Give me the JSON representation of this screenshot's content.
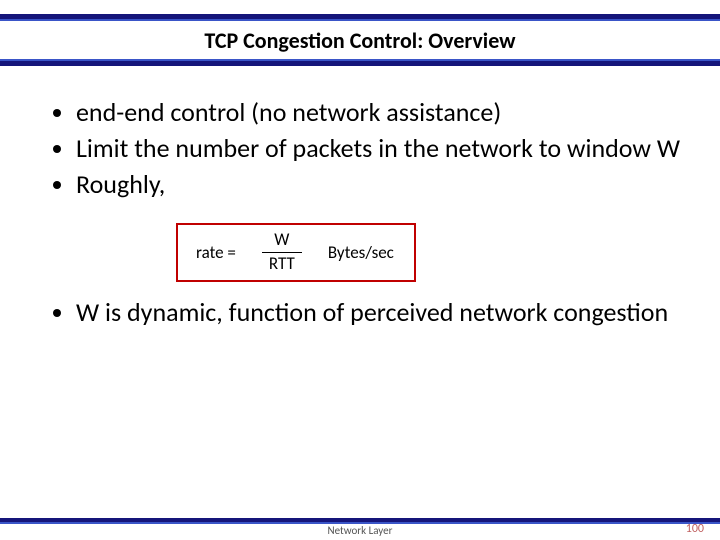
{
  "colors": {
    "band_outer": "#15157a",
    "band_inner": "#3a55c8",
    "formula_border": "#c00000",
    "page_num": "#c06060"
  },
  "title": "TCP Congestion Control: Overview",
  "bullets_top": [
    "end-end control (no network assistance)",
    "Limit the number of packets in the network to window W",
    "Roughly,"
  ],
  "formula": {
    "lhs": "rate =",
    "numerator": "W",
    "denominator": "RTT",
    "rhs": "Bytes/sec"
  },
  "bullets_bottom": [
    " W is dynamic, function of perceived network congestion"
  ],
  "footer": "Network Layer",
  "page_number": "100"
}
